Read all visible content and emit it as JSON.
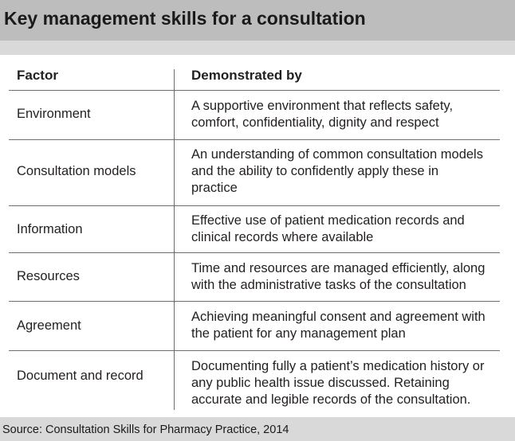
{
  "title": "Key management skills for a consultation",
  "table": {
    "headers": {
      "factor": "Factor",
      "demonstrated_by": "Demonstrated by"
    },
    "rows": [
      {
        "factor": "Environment",
        "demonstrated_by": [
          "A supportive environment that reflects safety,",
          "comfort, confidentiality, dignity and respect"
        ]
      },
      {
        "factor": "Consultation models",
        "demonstrated_by": [
          "An understanding of common consultation models",
          "and the ability to confidently apply these in",
          "practice"
        ]
      },
      {
        "factor": "Information",
        "demonstrated_by": [
          "Effective use of patient medication records and",
          "clinical records where available"
        ]
      },
      {
        "factor": "Resources",
        "demonstrated_by": [
          "Time and resources are managed efficiently, along",
          "with the administrative tasks of the consultation"
        ]
      },
      {
        "factor": "Agreement",
        "demonstrated_by": [
          "Achieving meaningful consent and agreement with",
          "the patient for any management plan"
        ]
      },
      {
        "factor": "Document and record",
        "demonstrated_by": [
          "Documenting fully a patient’s medication history or",
          "any public health issue discussed. Retaining",
          "accurate and legible records of the consultation."
        ]
      }
    ]
  },
  "source": "Source: Consultation Skills for Pharmacy Practice, 2014"
}
